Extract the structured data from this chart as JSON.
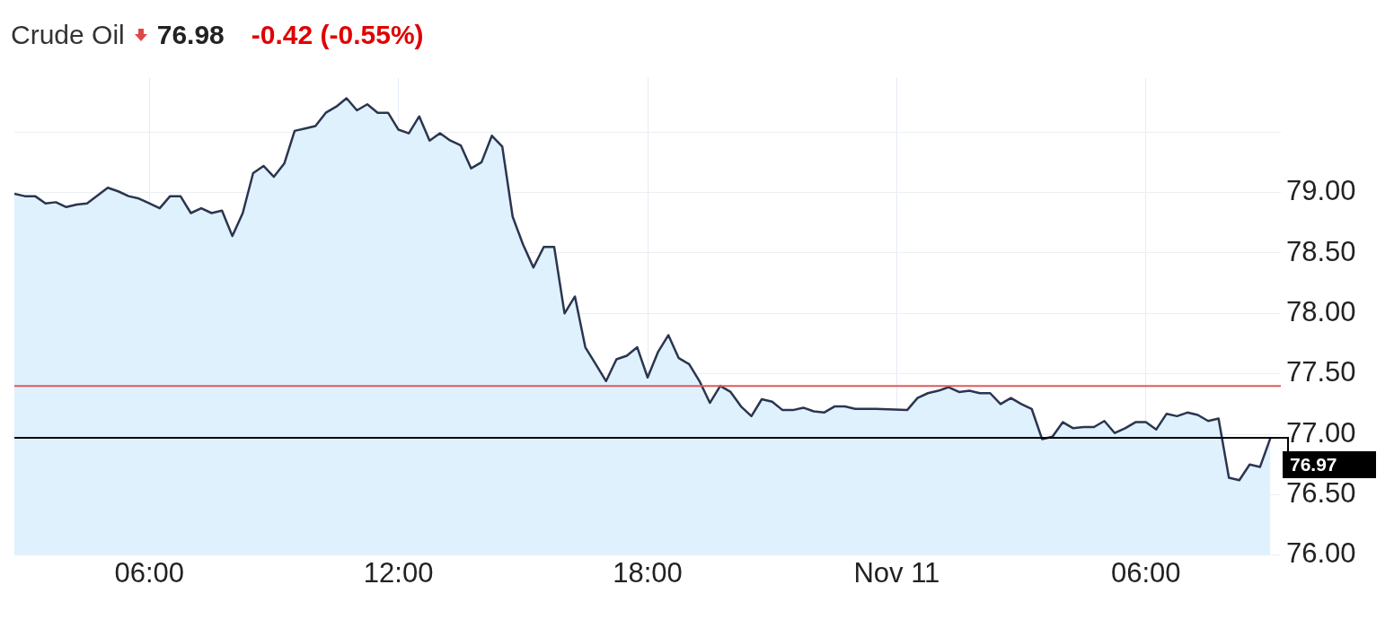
{
  "chart_data": {
    "type": "area",
    "title": "Crude Oil",
    "annotations": [
      "76.98",
      "-0.42 (-0.55%)"
    ],
    "x": [
      "--11-10T02:45",
      "--11-10T03:00",
      "--11-10T03:15",
      "--11-10T03:30",
      "--11-10T03:45",
      "--11-10T04:00",
      "--11-10T04:15",
      "--11-10T04:30",
      "--11-10T05:00",
      "--11-10T05:15",
      "--11-10T05:30",
      "--11-10T05:45",
      "--11-10T06:00",
      "--11-10T06:15",
      "--11-10T06:30",
      "--11-10T06:45",
      "--11-10T07:00",
      "--11-10T07:15",
      "--11-10T07:30",
      "--11-10T07:45",
      "--11-10T08:00",
      "--11-10T08:15",
      "--11-10T08:30",
      "--11-10T08:45",
      "--11-10T09:00",
      "--11-10T09:15",
      "--11-10T09:30",
      "--11-10T09:45",
      "--11-10T10:00",
      "--11-10T10:15",
      "--11-10T10:30",
      "--11-10T10:45",
      "--11-10T11:00",
      "--11-10T11:15",
      "--11-10T11:30",
      "--11-10T11:45",
      "--11-10T12:00",
      "--11-10T12:15",
      "--11-10T12:30",
      "--11-10T12:45",
      "--11-10T13:00",
      "--11-10T13:15",
      "--11-10T13:30",
      "--11-10T13:45",
      "--11-10T14:00",
      "--11-10T14:15",
      "--11-10T14:30",
      "--11-10T14:45",
      "--11-10T15:00",
      "--11-10T15:15",
      "--11-10T15:30",
      "--11-10T15:45",
      "--11-10T16:00",
      "--11-10T16:15",
      "--11-10T16:30",
      "--11-10T16:45",
      "--11-10T17:00",
      "--11-10T17:15",
      "--11-10T17:30",
      "--11-10T17:45",
      "--11-10T18:00",
      "--11-10T18:15",
      "--11-10T18:30",
      "--11-10T18:45",
      "--11-10T19:00",
      "--11-10T19:15",
      "--11-10T19:30",
      "--11-10T19:45",
      "--11-10T20:00",
      "--11-10T20:15",
      "--11-10T20:30",
      "--11-10T20:45",
      "--11-10T21:00",
      "--11-10T21:15",
      "--11-10T21:30",
      "--11-10T21:45",
      "--11-10T22:00",
      "--11-10T22:15",
      "--11-10T22:30",
      "--11-10T22:45",
      "--11-10T23:00",
      "--11-10T23:30",
      "--11-11T00:15",
      "--11-11T00:30",
      "--11-11T00:45",
      "--11-11T01:00",
      "--11-11T01:15",
      "--11-11T01:30",
      "--11-11T01:45",
      "--11-11T02:00",
      "--11-11T02:15",
      "--11-11T02:30",
      "--11-11T02:45",
      "--11-11T03:00",
      "--11-11T03:15",
      "--11-11T03:30",
      "--11-11T03:45",
      "--11-11T04:00",
      "--11-11T04:15",
      "--11-11T04:30",
      "--11-11T04:45",
      "--11-11T05:00",
      "--11-11T05:15",
      "--11-11T05:30",
      "--11-11T05:45",
      "--11-11T06:00",
      "--11-11T06:15",
      "--11-11T06:30",
      "--11-11T06:45",
      "--11-11T07:00",
      "--11-11T07:15",
      "--11-11T07:30",
      "--11-11T07:45",
      "--11-11T08:00",
      "--11-11T08:15",
      "--11-11T08:30",
      "--11-11T08:45",
      "--11-11T09:00"
    ],
    "series": [
      {
        "color": "#2b3550",
        "values": [
          78.99,
          78.97,
          78.97,
          78.91,
          78.92,
          78.88,
          78.9,
          78.91,
          79.04,
          79.01,
          78.97,
          78.95,
          78.91,
          78.87,
          78.97,
          78.97,
          78.83,
          78.87,
          78.83,
          78.85,
          78.64,
          78.83,
          79.16,
          79.22,
          79.13,
          79.24,
          79.51,
          79.53,
          79.55,
          79.66,
          79.71,
          79.78,
          79.68,
          79.73,
          79.66,
          79.66,
          79.52,
          79.49,
          79.63,
          79.43,
          79.49,
          79.43,
          79.39,
          79.2,
          79.25,
          79.47,
          79.38,
          78.8,
          78.57,
          78.38,
          78.55,
          78.55,
          78,
          78.14,
          77.72,
          77.58,
          77.44,
          77.62,
          77.65,
          77.72,
          77.47,
          77.68,
          77.82,
          77.63,
          77.58,
          77.44,
          77.26,
          77.4,
          77.35,
          77.23,
          77.15,
          77.29,
          77.27,
          77.2,
          77.2,
          77.22,
          77.19,
          77.18,
          77.23,
          77.23,
          77.21,
          77.21,
          77.2,
          77.3,
          77.34,
          77.36,
          77.39,
          77.35,
          77.36,
          77.34,
          77.34,
          77.25,
          77.3,
          77.25,
          77.21,
          76.96,
          76.98,
          77.1,
          77.05,
          77.06,
          77.06,
          77.11,
          77.01,
          77.05,
          77.1,
          77.1,
          77.04,
          77.17,
          77.15,
          77.18,
          77.16,
          77.11,
          77.13,
          76.64,
          76.62,
          76.75,
          76.73,
          76.97
        ]
      }
    ],
    "xlim": [
      "--11-10T02:45",
      "--11-11T09:15"
    ],
    "xticks": [
      {
        "value": "--11-10T06:00",
        "label": "06:00"
      },
      {
        "value": "--11-10T12:00",
        "label": "12:00"
      },
      {
        "value": "--11-10T18:00",
        "label": "18:00"
      },
      {
        "value": "--11-11T00:00",
        "label": "Nov 11"
      },
      {
        "value": "--11-11T06:00",
        "label": "06:00"
      }
    ],
    "ylim": [
      76,
      79.95
    ],
    "yticks": [
      {
        "value": 76,
        "label": "76.00"
      },
      {
        "value": 76.5,
        "label": "76.50"
      },
      {
        "value": 77,
        "label": "77.00"
      },
      {
        "value": 77.5,
        "label": "77.50"
      },
      {
        "value": 78,
        "label": "78.00"
      },
      {
        "value": 78.5,
        "label": "78.50"
      },
      {
        "value": 79,
        "label": "79.00"
      },
      {
        "value": 79.5,
        "label": null
      }
    ],
    "ref_lines": [
      {
        "axis": "y",
        "value": 77.4,
        "color": "#e05a5a"
      },
      {
        "axis": "y",
        "value": 76.97,
        "label": "76.97",
        "color": "#000000"
      }
    ],
    "grid": true
  }
}
